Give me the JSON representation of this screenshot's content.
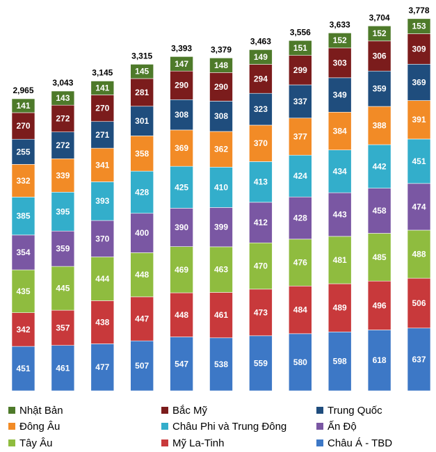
{
  "chart_data": {
    "type": "bar",
    "stacked": true,
    "title": "",
    "xlabel": "",
    "ylabel": "",
    "categories": [
      "",
      "",
      "",
      "",
      "",
      "",
      "",
      "",
      "",
      "",
      ""
    ],
    "ylim": [
      0,
      3800
    ],
    "grid": false,
    "legend_position": "bottom",
    "series": [
      {
        "name": "Châu Á - TBD",
        "color": "#3d78c6",
        "values": [
          451,
          461,
          477,
          507,
          547,
          538,
          559,
          580,
          598,
          618,
          637
        ]
      },
      {
        "name": "Mỹ La-Tinh",
        "color": "#c8393b",
        "values": [
          342,
          357,
          438,
          447,
          448,
          461,
          473,
          484,
          489,
          496,
          506
        ]
      },
      {
        "name": "Tây Âu",
        "color": "#8fbc3f",
        "values": [
          435,
          445,
          444,
          448,
          469,
          463,
          470,
          476,
          481,
          485,
          488
        ]
      },
      {
        "name": "Ấn Độ",
        "color": "#7a57a3",
        "values": [
          354,
          359,
          370,
          400,
          390,
          399,
          412,
          428,
          443,
          458,
          474
        ]
      },
      {
        "name": "Châu Phi và Trung Đông",
        "color": "#33aecb",
        "values": [
          385,
          395,
          393,
          428,
          425,
          410,
          413,
          424,
          434,
          442,
          451
        ]
      },
      {
        "name": "Đông Âu",
        "color": "#f28b26",
        "values": [
          332,
          339,
          341,
          358,
          369,
          362,
          370,
          377,
          384,
          388,
          391
        ]
      },
      {
        "name": "Trung Quốc",
        "color": "#1f4d7d",
        "values": [
          255,
          272,
          271,
          301,
          308,
          308,
          323,
          337,
          349,
          359,
          369
        ]
      },
      {
        "name": "Bắc Mỹ",
        "color": "#7b1c1c",
        "values": [
          270,
          272,
          270,
          281,
          290,
          290,
          294,
          299,
          303,
          306,
          309
        ]
      },
      {
        "name": "Nhật Bản",
        "color": "#4e7a2a",
        "values": [
          141,
          143,
          141,
          145,
          147,
          148,
          149,
          151,
          152,
          152,
          153
        ]
      }
    ],
    "totals": [
      "2,965",
      "3,043",
      "3,145",
      "3,315",
      "3,393",
      "3,379",
      "3,463",
      "3,556",
      "3,633",
      "3,704",
      "3,778"
    ],
    "legend_order": [
      "Nhật Bản",
      "Bắc Mỹ",
      "Trung Quốc",
      "Đông Âu",
      "Châu Phi và Trung Đông",
      "Ấn Độ",
      "Tây Âu",
      "Mỹ La-Tinh",
      "Châu Á - TBD"
    ]
  }
}
